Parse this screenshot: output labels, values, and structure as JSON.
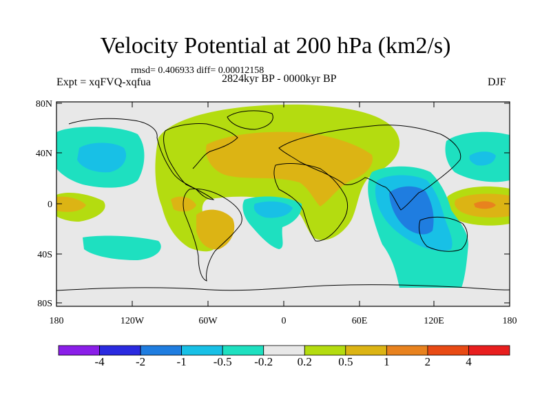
{
  "header": {
    "title": "Velocity Potential at 200 hPa (km2/s)",
    "stats": "rmsd= 0.406933 diff= 0.00012158",
    "experiment": "Expt = xqFVQ-xqfua",
    "period": "2824kyr BP - 0000kyr BP",
    "season": "DJF"
  },
  "axes": {
    "lat_ticks": [
      "80N",
      "40N",
      "0",
      "40S",
      "80S"
    ],
    "lon_ticks": [
      "180",
      "120W",
      "60W",
      "0",
      "60E",
      "120E",
      "180"
    ]
  },
  "colorbar": {
    "labels": [
      "-4",
      "-2",
      "-1",
      "-0.5",
      "-0.2",
      "0.2",
      "0.5",
      "1",
      "2",
      "4"
    ],
    "colors": [
      "#8a1ee8",
      "#2a2ae0",
      "#1f7de0",
      "#18c0e6",
      "#1ee0c0",
      "#e8e8e8",
      "#b4dc10",
      "#dcb414",
      "#e8821e",
      "#e84a14",
      "#e81e1e"
    ]
  },
  "field_colors": {
    "neg_1": "#1f7de0",
    "neg_05": "#18c0e6",
    "neg_02": "#1ee0c0",
    "neutral": "#e8e8e8",
    "pos_02": "#b4dc10",
    "pos_05": "#dcb414",
    "pos_1": "#e8821e"
  }
}
